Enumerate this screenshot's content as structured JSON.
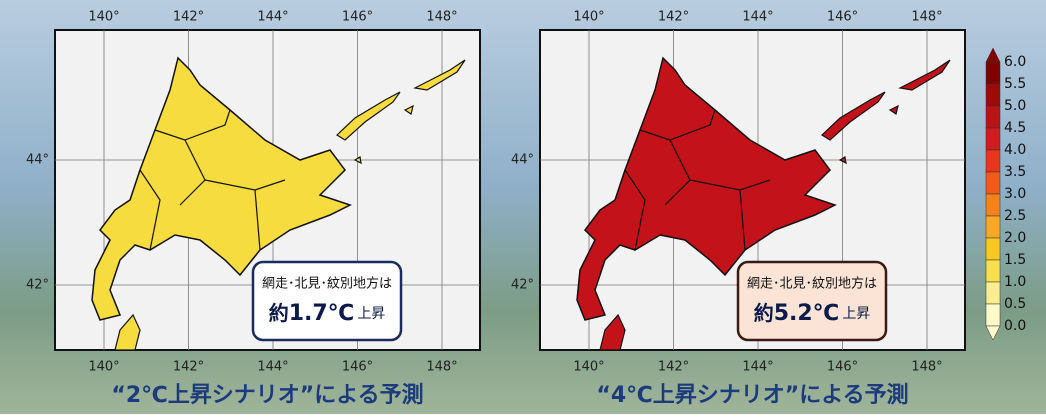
{
  "maps": [
    {
      "lon_ticks": [
        "140°",
        "142°",
        "144°",
        "146°",
        "148°"
      ],
      "lat_ticks": [
        "44°",
        "42°"
      ],
      "fill": "#f6dc3e",
      "callout": {
        "region": "網走･北見･紋別地方は",
        "prefix": "約",
        "value": "1.7℃",
        "suffix": "上昇",
        "background": "#ffffff",
        "border": "#1d2b5c"
      },
      "caption": "“2℃上昇シナリオ”による予測"
    },
    {
      "lon_ticks": [
        "140°",
        "142°",
        "144°",
        "146°",
        "148°"
      ],
      "lat_ticks": [
        "44°",
        "42°"
      ],
      "fill": "#c4121b",
      "callout": {
        "region": "網走･北見･紋別地方は",
        "prefix": "約",
        "value": "5.2℃",
        "suffix": "上昇",
        "background": "#fbe3d6",
        "border": "#3a1a12"
      },
      "caption": "“4℃上昇シナリオ”による予測"
    }
  ],
  "colorbar": {
    "labels": [
      "6.0",
      "5.5",
      "5.0",
      "4.5",
      "4.0",
      "3.5",
      "3.0",
      "2.5",
      "2.0",
      "1.5",
      "1.0",
      "0.5",
      "0.0"
    ],
    "colors": [
      "#800000",
      "#9c0a0a",
      "#b81414",
      "#d01c1c",
      "#e8351c",
      "#f25a17",
      "#f7821a",
      "#f9a824",
      "#f7c81f",
      "#f7e04a",
      "#fbee90",
      "#fff8c8"
    ]
  }
}
